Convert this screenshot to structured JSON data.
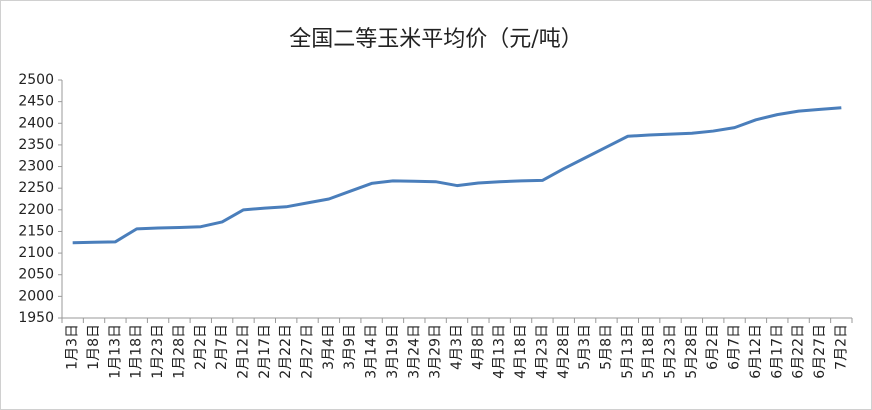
{
  "chart_data": {
    "type": "line",
    "title": "全国二等玉米平均价（元/吨）",
    "categories": [
      "1月3日",
      "1月8日",
      "1月13日",
      "1月18日",
      "1月23日",
      "1月28日",
      "2月2日",
      "2月7日",
      "2月12日",
      "2月17日",
      "2月22日",
      "2月27日",
      "3月4日",
      "3月9日",
      "3月14日",
      "3月19日",
      "3月24日",
      "3月29日",
      "4月3日",
      "4月8日",
      "4月13日",
      "4月18日",
      "4月23日",
      "4月28日",
      "5月3日",
      "5月8日",
      "5月13日",
      "5月18日",
      "5月23日",
      "5月28日",
      "6月2日",
      "6月7日",
      "6月12日",
      "6月17日",
      "6月22日",
      "6月27日",
      "7月2日"
    ],
    "series": [
      {
        "name": "全国二等玉米平均价",
        "color": "#4a7ebb",
        "values": [
          2124,
          2125,
          2126,
          2156,
          2158,
          2159,
          2161,
          2172,
          2200,
          2204,
          2207,
          2216,
          2225,
          2243,
          2261,
          2267,
          2266,
          2265,
          2256,
          2262,
          2265,
          2267,
          2268,
          2295,
          2320,
          2345,
          2370,
          2373,
          2375,
          2377,
          2382,
          2390,
          2408,
          2420,
          2428,
          2432,
          2436
        ]
      }
    ],
    "ylim": [
      1950,
      2500
    ],
    "yticks": [
      1950,
      2000,
      2050,
      2100,
      2150,
      2200,
      2250,
      2300,
      2350,
      2400,
      2450,
      2500
    ],
    "grid": false
  }
}
